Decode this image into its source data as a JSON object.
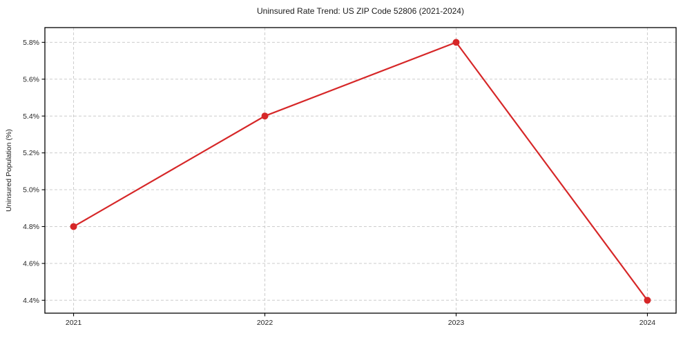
{
  "chart_data": {
    "type": "line",
    "title": "Uninsured Rate Trend: US ZIP Code 52806 (2021-2024)",
    "xlabel": "",
    "ylabel": "Uninsured Population (%)",
    "series": [
      {
        "name": "Uninsured rate",
        "x": [
          2021,
          2022,
          2023,
          2024
        ],
        "values": [
          4.8,
          5.4,
          5.8,
          4.4
        ]
      }
    ],
    "x_ticks": [
      2021,
      2022,
      2023,
      2024
    ],
    "x_tick_labels": [
      "2021",
      "2022",
      "2023",
      "2024"
    ],
    "y_ticks": [
      4.4,
      4.6,
      4.8,
      5.0,
      5.2,
      5.4,
      5.6,
      5.8
    ],
    "y_tick_labels": [
      "4.4%",
      "4.6%",
      "4.8%",
      "5.0%",
      "5.2%",
      "5.4%",
      "5.6%",
      "5.8%"
    ],
    "xlim": [
      2020.85,
      2024.15
    ],
    "ylim": [
      4.33,
      5.88
    ],
    "grid": true,
    "grid_style": "dashed",
    "legend": "none",
    "colors": {
      "line": "#d62728",
      "marker": "#d62728",
      "grid": "#cccccc",
      "axis_box": "#000000",
      "tick": "#000000",
      "text": "#262626",
      "background": "#ffffff"
    }
  }
}
